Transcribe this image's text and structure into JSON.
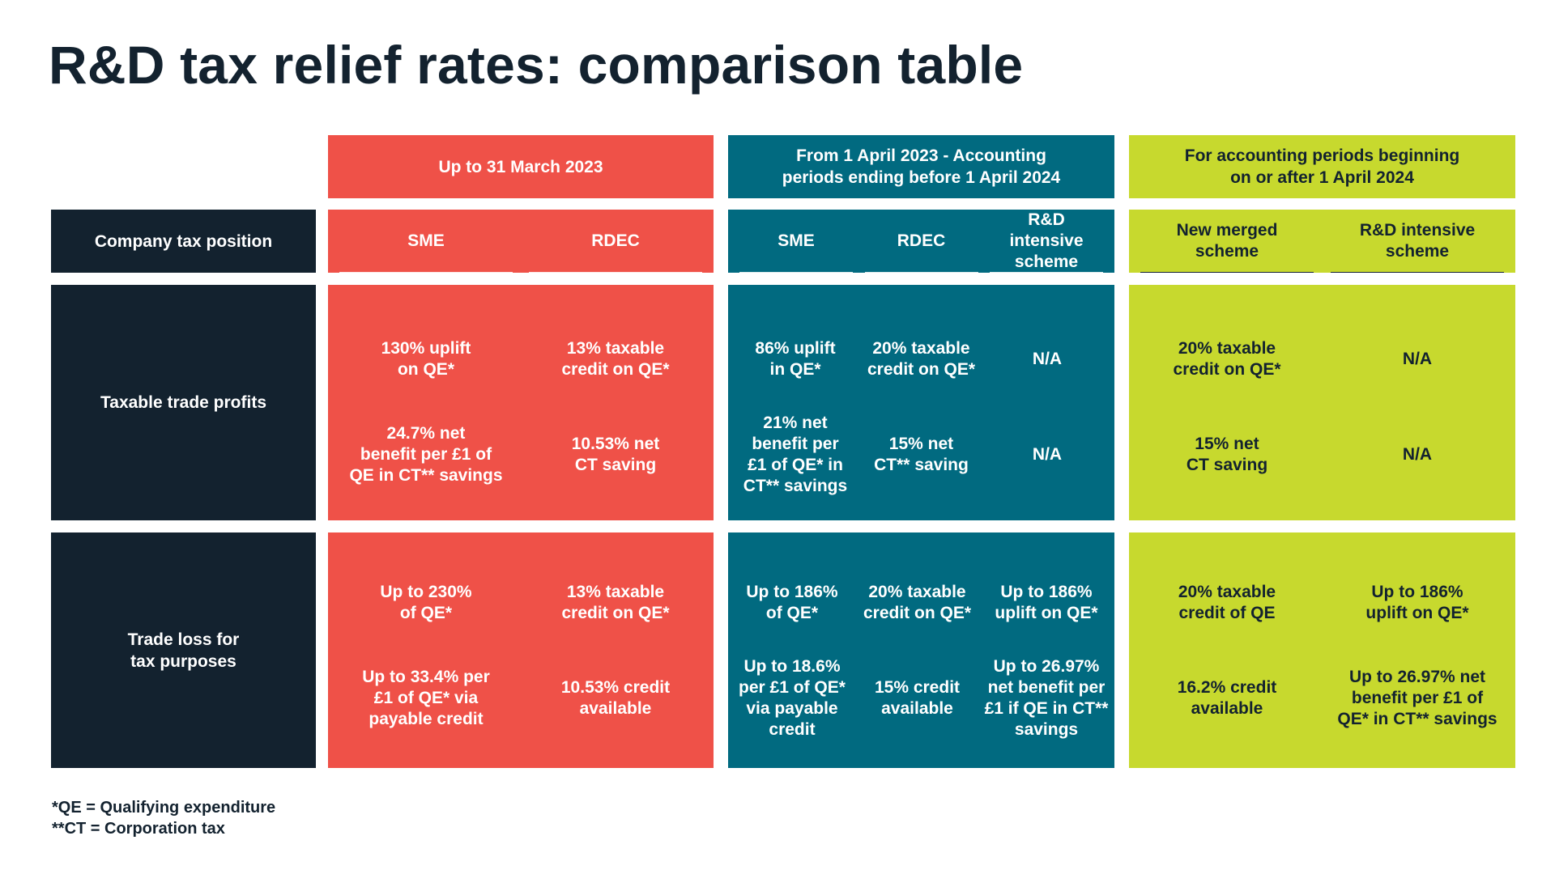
{
  "title": "R&D tax relief rates: comparison table",
  "colors": {
    "red": "#ef5148",
    "teal": "#016a80",
    "lime": "#c7d92e",
    "navy": "#13222f"
  },
  "row_labels": {
    "header": "Company tax position",
    "profits": "Taxable trade profits",
    "loss": "Trade loss for\ntax purposes"
  },
  "periods": [
    {
      "label": "Up to 31 March 2023",
      "columns": [
        "SME",
        "RDEC"
      ],
      "profits": [
        [
          "130% uplift\non QE*",
          "24.7% net\nbenefit per £1 of\nQE in CT** savings"
        ],
        [
          "13% taxable\ncredit on QE*",
          "10.53% net\nCT saving"
        ]
      ],
      "loss": [
        [
          "Up to 230%\nof QE*",
          "Up to 33.4% per\n£1 of QE* via\npayable credit"
        ],
        [
          "13% taxable\ncredit on QE*",
          "10.53% credit\navailable"
        ]
      ]
    },
    {
      "label": "From 1 April 2023 - Accounting\nperiods ending before 1 April 2024",
      "columns": [
        "SME",
        "RDEC",
        "R&D intensive\nscheme"
      ],
      "profits": [
        [
          "86% uplift\nin QE*",
          "21% net\nbenefit per\n£1 of QE* in\nCT** savings"
        ],
        [
          "20% taxable\ncredit on QE*",
          "15% net\nCT** saving"
        ],
        [
          "N/A",
          "N/A"
        ]
      ],
      "loss": [
        [
          "Up to 186%\nof QE*",
          "Up to 18.6%\nper £1 of QE*\nvia payable\ncredit"
        ],
        [
          "20% taxable\ncredit on QE*",
          "15% credit\navailable"
        ],
        [
          "Up to 186%\nuplift on QE*",
          "Up to 26.97%\nnet benefit per\n£1 if QE in CT**\nsavings"
        ]
      ]
    },
    {
      "label": "For accounting periods beginning\non or after 1 April 2024",
      "columns": [
        "New merged\nscheme",
        "R&D intensive\nscheme"
      ],
      "profits": [
        [
          "20% taxable\ncredit on QE*",
          "15% net\nCT saving"
        ],
        [
          "N/A",
          "N/A"
        ]
      ],
      "loss": [
        [
          "20% taxable\ncredit of QE",
          "16.2% credit\navailable"
        ],
        [
          "Up to 186%\nuplift on QE*",
          "Up to 26.97% net\nbenefit per £1 of\nQE* in CT** savings"
        ]
      ]
    }
  ],
  "footnotes": [
    "*QE = Qualifying expenditure",
    "**CT = Corporation tax"
  ]
}
